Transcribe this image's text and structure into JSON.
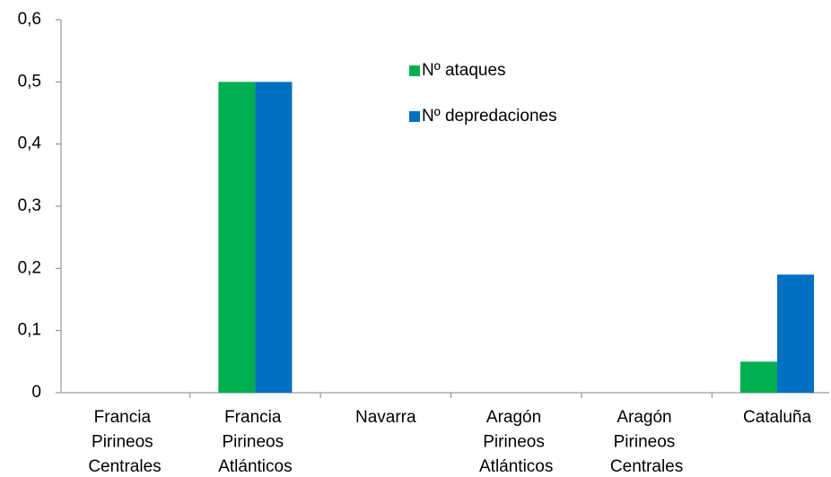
{
  "chart_data": {
    "type": "bar",
    "categories": [
      "Francia Pirineos Centrales",
      "Francia Pirineos Atlánticos",
      "Navarra",
      "Aragón Pirineos Atlánticos",
      "Aragón Pirineos Centrales",
      "Cataluña"
    ],
    "series": [
      {
        "name": "Nº ataques",
        "color": "#00b050",
        "values": [
          0,
          0.5,
          0,
          0,
          0,
          0.05
        ]
      },
      {
        "name": "Nº depredaciones",
        "color": "#0070c0",
        "values": [
          0,
          0.5,
          0,
          0,
          0,
          0.19
        ]
      }
    ],
    "ylim": [
      0,
      0.6
    ],
    "yticks": [
      0,
      {
        "value": 0.1,
        "label": "0,1"
      },
      {
        "value": 0.2,
        "label": "0,2"
      },
      {
        "value": 0.3,
        "label": "0,3"
      },
      {
        "value": 0.4,
        "label": "0,4"
      },
      {
        "value": 0.5,
        "label": "0,5"
      },
      {
        "value": 0.6,
        "label": "0,6"
      }
    ],
    "grid": false,
    "legend": "top-center"
  }
}
